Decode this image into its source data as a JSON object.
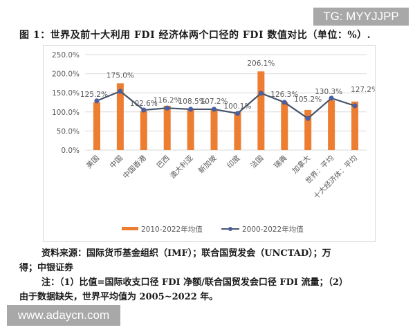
{
  "watermarks": {
    "top": "TG: MYYJJPP",
    "bottom": "www.adaycn.com"
  },
  "figure": {
    "title": "图 1：世界及前十大利用 FDI 经济体两个口径的 FDI 数值对比（单位：%）.",
    "source_line1": "资料来源：国际货币基金组织（IMF）；联合国贸发会（UNCTAD）；万",
    "source_line2": "得；中银证券",
    "note_line1": "注：（1）比值=国际收支口径 FDI 净额/联合国贸发会口径 FDI 流量；（2）",
    "note_line2": "由于数据缺失，世界平均值为 2005~2022 年。"
  },
  "colors": {
    "bar": "#ED7D31",
    "line": "#44546A",
    "marker": "#4A5FA0",
    "grid": "#D9D9D9",
    "axis_text": "#595959"
  },
  "chart_data": {
    "type": "bar+line",
    "title": "世界及前十大利用 FDI 经济体两个口径的 FDI 数值对比（单位：%）",
    "xlabel": "",
    "ylabel": "",
    "ylim": [
      0,
      250
    ],
    "yticks": [
      "0.0%",
      "50.0%",
      "100.0%",
      "150.0%",
      "200.0%",
      "250.0%"
    ],
    "grid": true,
    "legend_position": "bottom",
    "categories": [
      "美国",
      "中国",
      "中国香港",
      "巴西",
      "澳大利亚",
      "新加坡",
      "印度",
      "法国",
      "瑞典",
      "加拿大",
      "世界：平均",
      "十大经济体：平均"
    ],
    "series": [
      {
        "name": "2010-2022年均值",
        "type": "bar",
        "values": [
          125.2,
          175.0,
          102.6,
          116.2,
          108.5,
          107.2,
          100.1,
          206.1,
          126.3,
          105.2,
          130.3,
          127.2
        ],
        "labels": [
          "125.2%",
          "175.0%",
          "102.6%",
          "116.2%",
          "108.5%",
          "107.2%",
          "100.1%",
          "206.1%",
          "126.3%",
          "105.2%",
          "130.3%",
          "127.2%"
        ]
      },
      {
        "name": "2000-2022年均值",
        "type": "line",
        "values": [
          129,
          154,
          105,
          110,
          107,
          107,
          96,
          149,
          125,
          83,
          136,
          116
        ]
      }
    ]
  }
}
